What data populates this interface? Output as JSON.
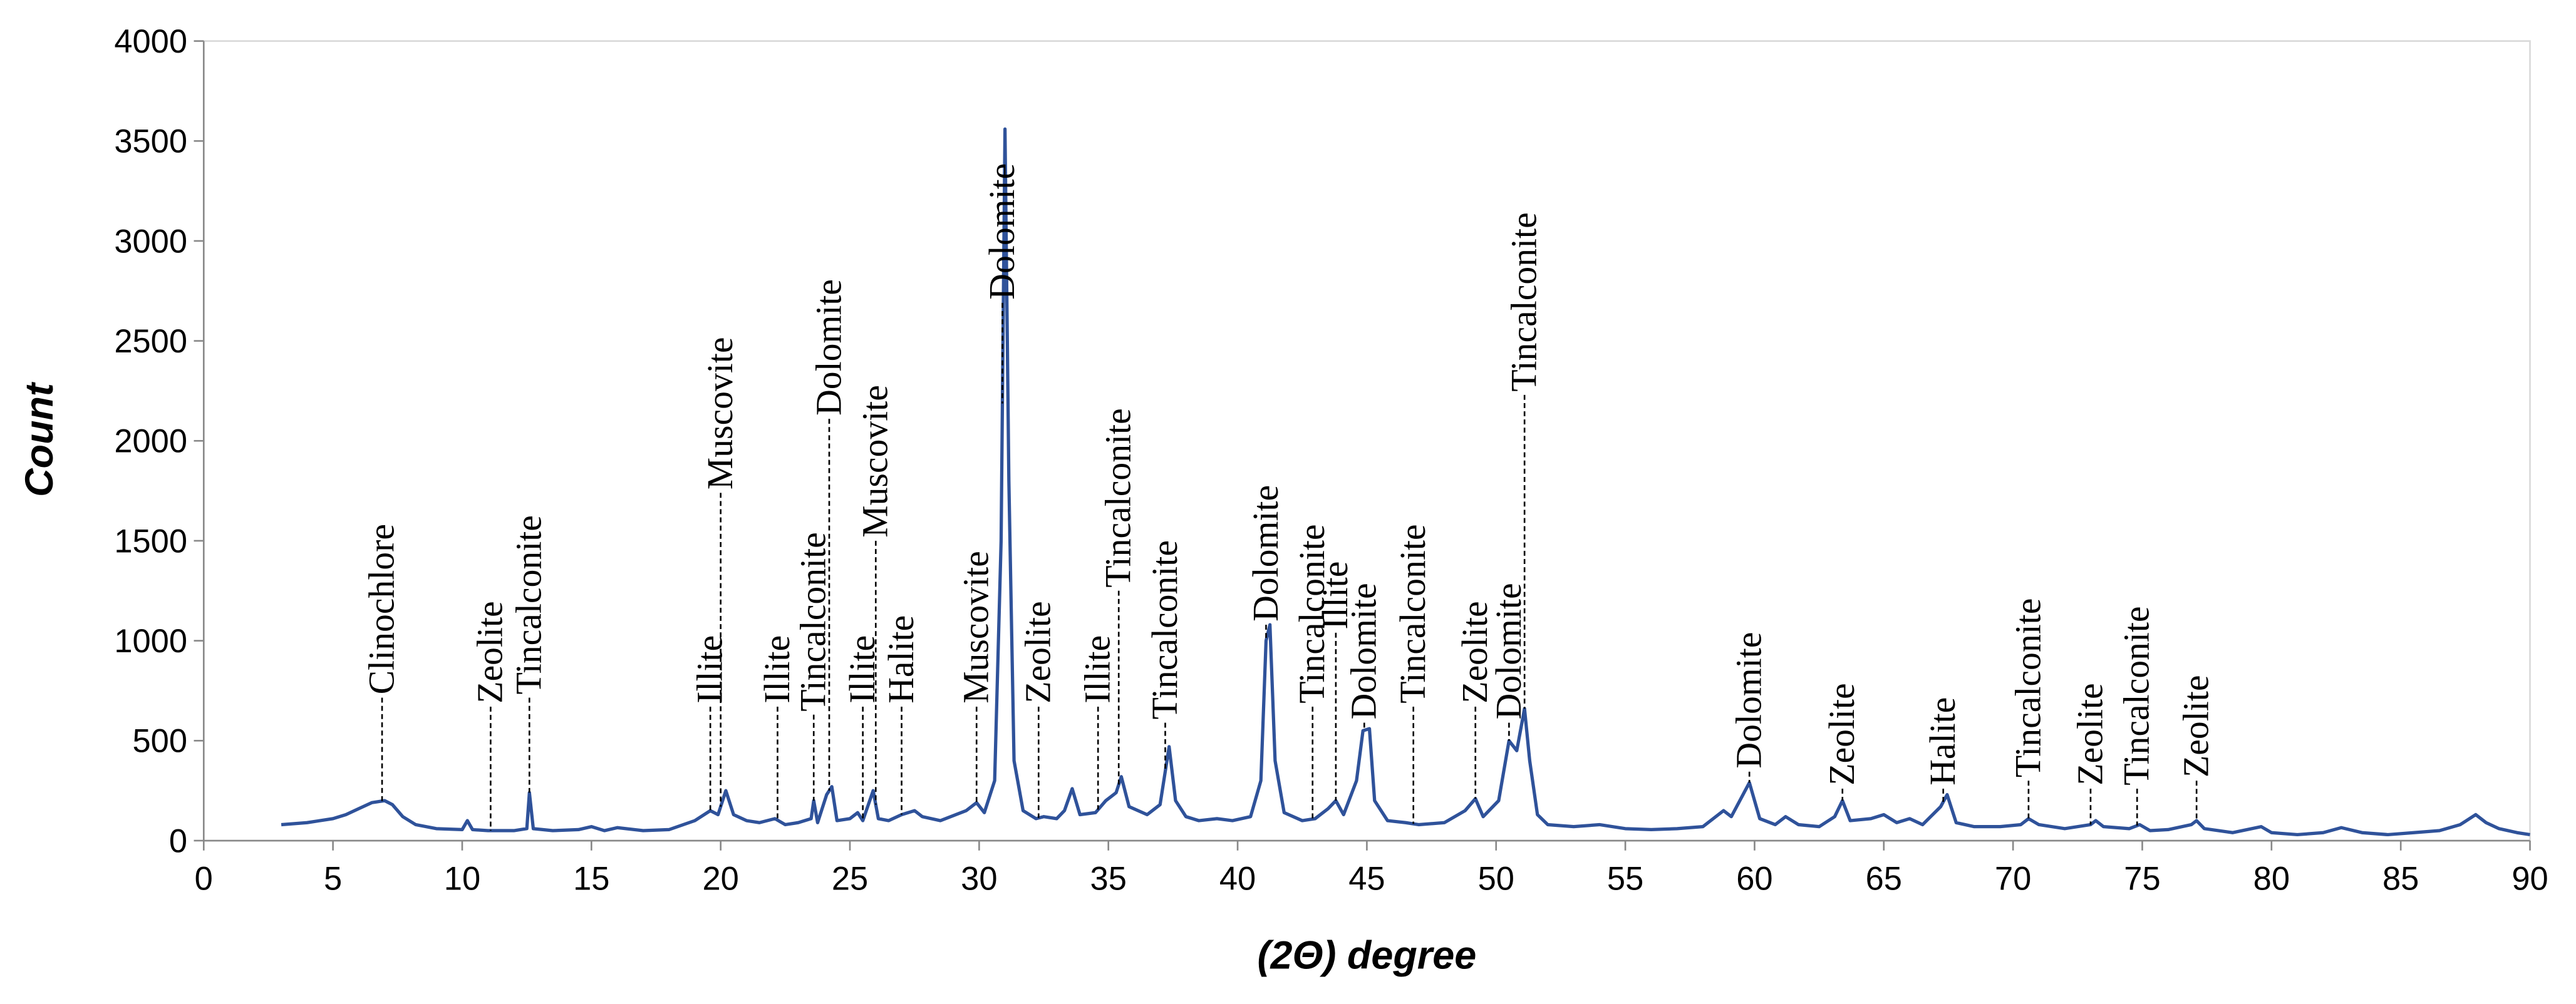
{
  "chart_data": {
    "type": "line",
    "x_label": "(2Θ) degree",
    "y_label": "Count",
    "xlim": [
      0,
      90
    ],
    "ylim": [
      0,
      4000
    ],
    "xticks": [
      0,
      5,
      10,
      15,
      20,
      25,
      30,
      35,
      40,
      45,
      50,
      55,
      60,
      65,
      70,
      75,
      80,
      85,
      90
    ],
    "yticks": [
      0,
      500,
      1000,
      1500,
      2000,
      2500,
      3000,
      3500,
      4000
    ],
    "grid": false,
    "series": [
      {
        "color": "#2f529a",
        "x": [
          3,
          4,
          5,
          5.5,
          6,
          6.5,
          7,
          7.3,
          7.7,
          8.2,
          9,
          10,
          10.2,
          10.4,
          11,
          12,
          12.5,
          12.6,
          12.75,
          13.5,
          14.5,
          15,
          15.5,
          16,
          17,
          18,
          19,
          19.6,
          19.9,
          20.2,
          20.5,
          21,
          21.5,
          22.1,
          22.5,
          23,
          23.5,
          23.6,
          23.75,
          24.1,
          24.3,
          24.5,
          25,
          25.3,
          25.5,
          25.9,
          26.1,
          26.5,
          27,
          27.5,
          27.8,
          28.5,
          29.5,
          29.9,
          30.2,
          30.6,
          30.85,
          31.0,
          31.15,
          31.35,
          31.7,
          32.2,
          32.5,
          33,
          33.3,
          33.6,
          33.9,
          34.5,
          34.9,
          35.3,
          35.5,
          35.8,
          36.5,
          37,
          37.35,
          37.6,
          38,
          38.5,
          39.2,
          39.8,
          40.5,
          40.9,
          41.1,
          41.25,
          41.45,
          41.8,
          42.5,
          43,
          43.5,
          43.8,
          44.1,
          44.6,
          44.85,
          45.1,
          45.3,
          45.8,
          46.5,
          47,
          48,
          48.8,
          49.2,
          49.5,
          50.1,
          50.5,
          50.8,
          51.1,
          51.3,
          51.6,
          52,
          53,
          54,
          55,
          56,
          57,
          58,
          58.8,
          59.1,
          59.8,
          60.2,
          60.8,
          61.2,
          61.7,
          62.5,
          63.1,
          63.4,
          63.7,
          64.5,
          65,
          65.5,
          66,
          66.5,
          67.2,
          67.45,
          67.8,
          68.5,
          69.5,
          70.3,
          70.6,
          71,
          72,
          73,
          73.2,
          73.5,
          74.5,
          74.9,
          75.3,
          76,
          76.9,
          77.1,
          77.4,
          78.5,
          79.6,
          80,
          81,
          82,
          82.7,
          83.5,
          84.5,
          85.5,
          86.5,
          87.3,
          87.9,
          88.3,
          88.8,
          89.5,
          90
        ],
        "values": [
          80,
          90,
          110,
          130,
          160,
          190,
          200,
          180,
          120,
          80,
          60,
          55,
          100,
          55,
          50,
          50,
          60,
          240,
          60,
          50,
          55,
          70,
          50,
          65,
          50,
          55,
          100,
          150,
          130,
          250,
          130,
          100,
          90,
          110,
          80,
          90,
          110,
          200,
          90,
          230,
          270,
          100,
          110,
          140,
          100,
          250,
          110,
          100,
          130,
          150,
          120,
          100,
          150,
          190,
          140,
          300,
          1500,
          3560,
          1800,
          400,
          150,
          110,
          120,
          110,
          150,
          260,
          130,
          140,
          200,
          240,
          320,
          170,
          130,
          180,
          470,
          200,
          120,
          100,
          110,
          100,
          120,
          300,
          1000,
          1080,
          400,
          140,
          100,
          110,
          160,
          200,
          130,
          300,
          550,
          560,
          200,
          100,
          90,
          80,
          90,
          150,
          210,
          120,
          200,
          500,
          450,
          660,
          400,
          130,
          80,
          70,
          80,
          60,
          55,
          60,
          70,
          150,
          120,
          290,
          110,
          80,
          120,
          80,
          70,
          120,
          200,
          100,
          110,
          130,
          90,
          110,
          80,
          170,
          230,
          90,
          70,
          70,
          80,
          110,
          80,
          60,
          80,
          100,
          70,
          60,
          80,
          50,
          55,
          80,
          100,
          60,
          40,
          70,
          40,
          30,
          40,
          65,
          40,
          30,
          40,
          50,
          80,
          130,
          90,
          60,
          40,
          30
        ]
      }
    ],
    "annotations": [
      {
        "text": "Clinochlore",
        "x": 6.9,
        "y": 715
      },
      {
        "text": "Zeolite",
        "x": 11.1,
        "y": 670
      },
      {
        "text": "Tincalconite",
        "x": 12.6,
        "y": 715
      },
      {
        "text": "Illite",
        "x": 19.6,
        "y": 670
      },
      {
        "text": "Muscovite",
        "x": 20.0,
        "y": 1740
      },
      {
        "text": "Illite",
        "x": 22.2,
        "y": 670
      },
      {
        "text": "Tincalconite",
        "x": 23.6,
        "y": 630
      },
      {
        "text": "Dolomite",
        "x": 24.2,
        "y": 2110
      },
      {
        "text": "Illite",
        "x": 25.5,
        "y": 670
      },
      {
        "text": "Muscovite",
        "x": 26.0,
        "y": 1500
      },
      {
        "text": "Halite",
        "x": 27.0,
        "y": 670
      },
      {
        "text": "Muscovite",
        "x": 29.9,
        "y": 670
      },
      {
        "text": "Dolomite",
        "x": 30.9,
        "y": 2690
      },
      {
        "text": "Zeolite",
        "x": 32.3,
        "y": 670
      },
      {
        "text": "Illite",
        "x": 34.6,
        "y": 670
      },
      {
        "text": "Tincalconite",
        "x": 35.4,
        "y": 1250
      },
      {
        "text": "Tincalconite",
        "x": 37.2,
        "y": 590
      },
      {
        "text": "Dolomite",
        "x": 41.1,
        "y": 1080
      },
      {
        "text": "Tincalconite",
        "x": 42.9,
        "y": 670
      },
      {
        "text": "Illite",
        "x": 43.8,
        "y": 1040
      },
      {
        "text": "Dolomite",
        "x": 44.9,
        "y": 590
      },
      {
        "text": "Tincalconite",
        "x": 46.8,
        "y": 670
      },
      {
        "text": "Zeolite",
        "x": 49.2,
        "y": 670
      },
      {
        "text": "Dolomite",
        "x": 50.5,
        "y": 590
      },
      {
        "text": "Tincalconite",
        "x": 51.1,
        "y": 2230
      },
      {
        "text": "Dolomite",
        "x": 59.8,
        "y": 345
      },
      {
        "text": "Zeolite",
        "x": 63.4,
        "y": 260
      },
      {
        "text": "Halite",
        "x": 67.3,
        "y": 260
      },
      {
        "text": "Tincalconite",
        "x": 70.6,
        "y": 300
      },
      {
        "text": "Zeolite",
        "x": 73.0,
        "y": 260
      },
      {
        "text": "Tincalconite",
        "x": 74.8,
        "y": 260
      },
      {
        "text": "Zeolite",
        "x": 77.1,
        "y": 300
      }
    ]
  }
}
